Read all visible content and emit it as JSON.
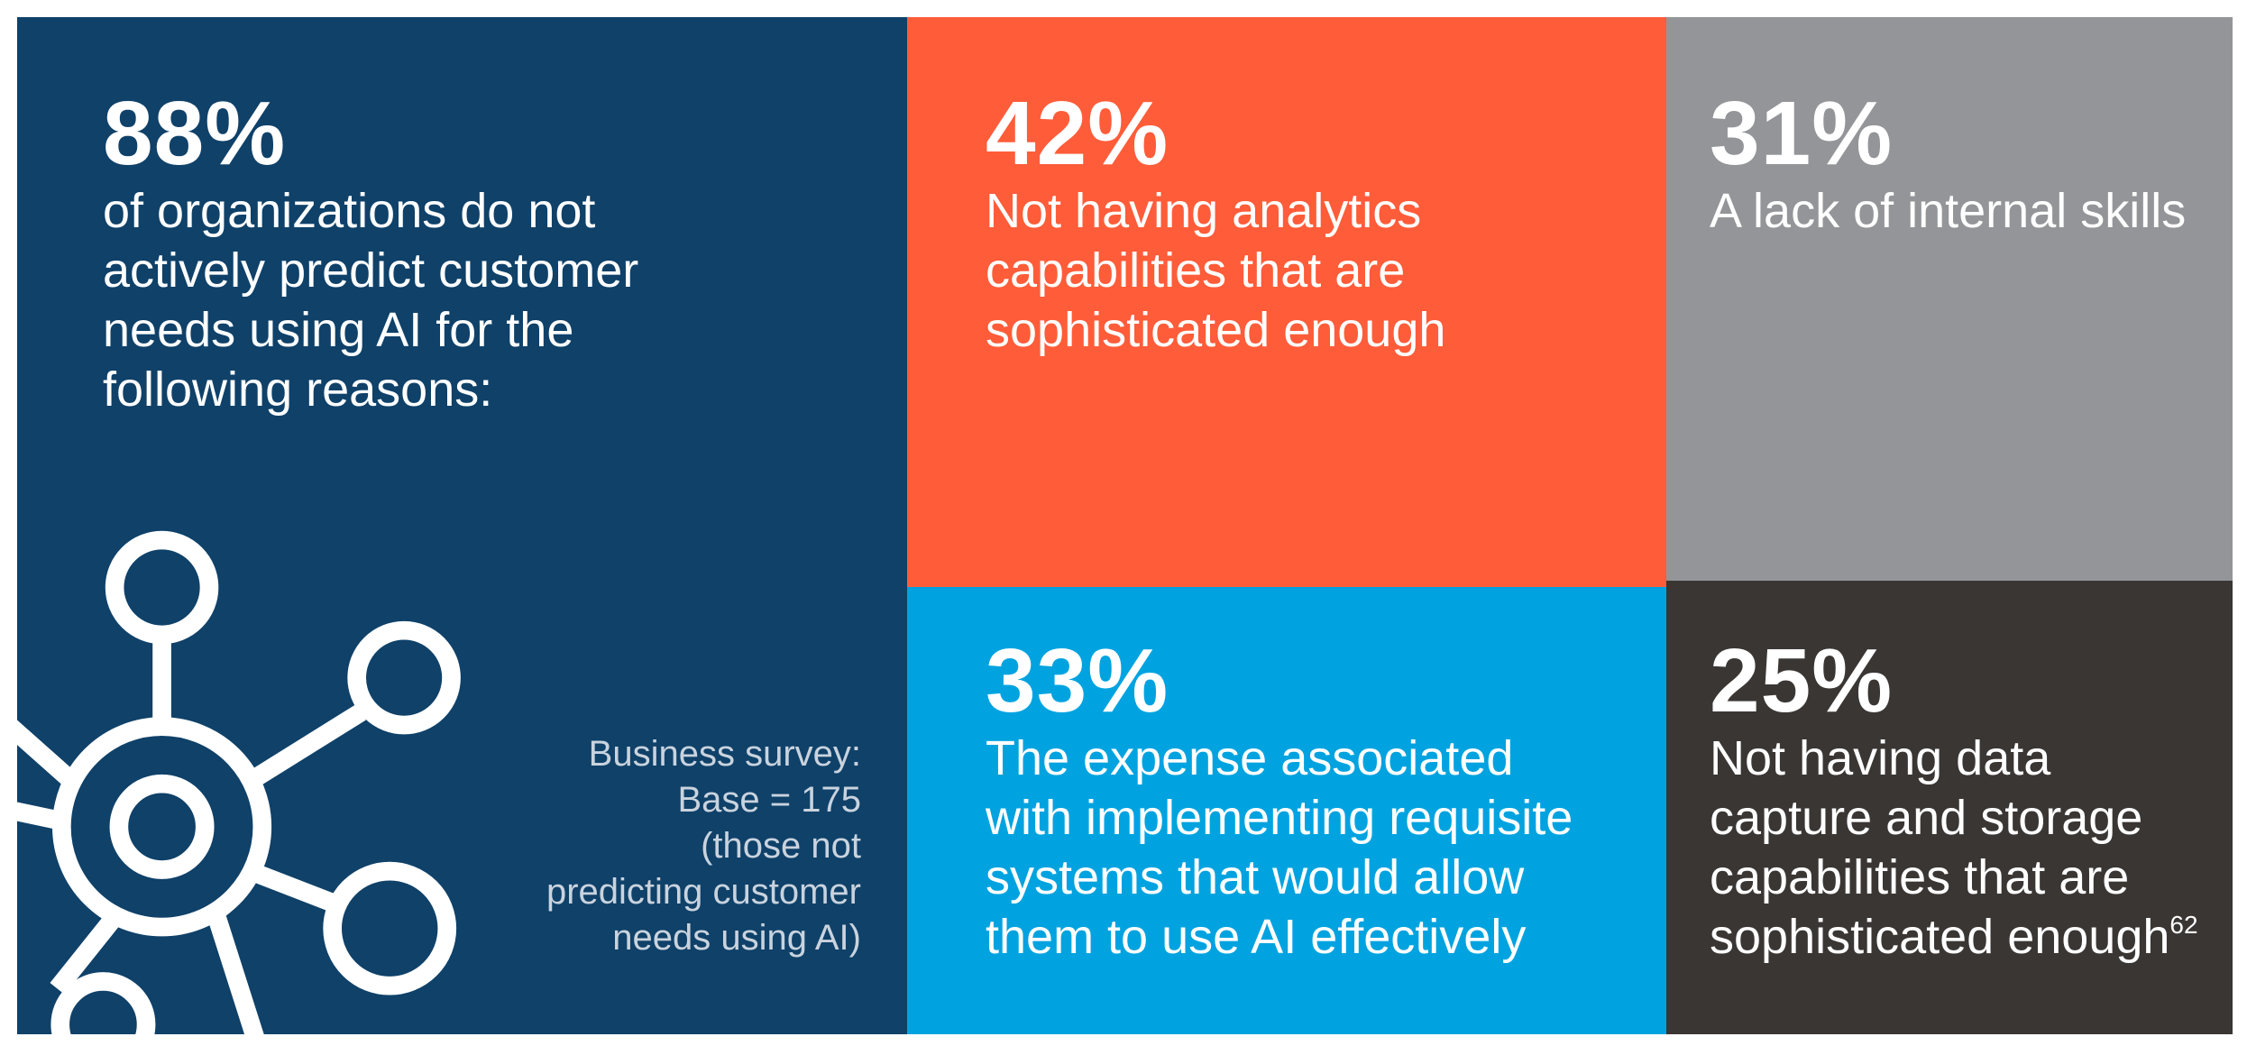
{
  "panels": [
    {
      "stat": "88%",
      "lines": [
        "of organizations do not",
        "actively predict customer",
        "needs using AI for the",
        "following reasons:"
      ]
    },
    {
      "stat": "42%",
      "lines": [
        "Not having analytics",
        "capabilities that are",
        "sophisticated enough"
      ]
    },
    {
      "stat": "31%",
      "lines": [
        "A lack of internal skills"
      ]
    },
    {
      "stat": "33%",
      "lines": [
        "The expense associated",
        "with implementing requisite",
        "systems that would allow",
        "them to use AI effectively"
      ]
    },
    {
      "stat": "25%",
      "lines": [
        "Not having data",
        "capture and storage",
        "capabilities that are",
        "sophisticated enough"
      ],
      "footnote_ref": "62"
    }
  ],
  "note": [
    "Business survey:",
    "Base = 175",
    "(those not",
    "predicting customer",
    "needs using AI)"
  ]
}
